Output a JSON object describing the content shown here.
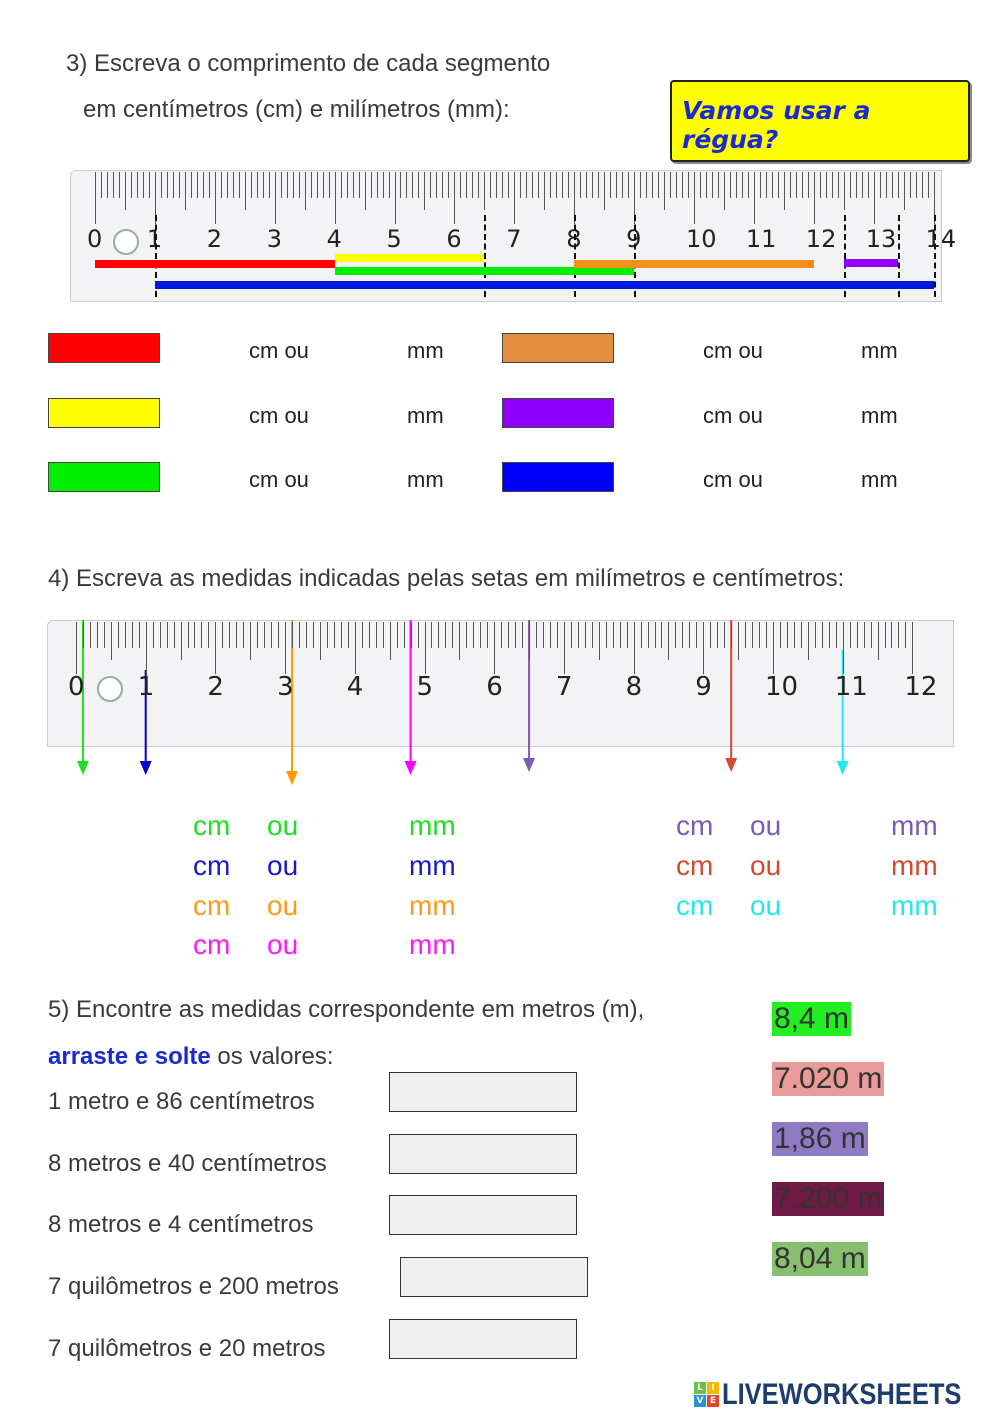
{
  "q3": {
    "line1": "3) Escreva o comprimento de cada segmento",
    "line2": "em centímetros (cm) e milímetros (mm):"
  },
  "banner": {
    "text": "Vamos usar a régua?"
  },
  "ruler1": {
    "max_cm": 14,
    "labels": [
      "0",
      "1",
      "2",
      "3",
      "4",
      "5",
      "6",
      "7",
      "8",
      "9",
      "10",
      "11",
      "12",
      "13",
      "14"
    ],
    "segments": [
      {
        "color": "#ff0000",
        "start_cm": 0,
        "end_cm": 4
      },
      {
        "color": "#ffff00",
        "start_cm": 4,
        "end_cm": 6.5
      },
      {
        "color": "#00ee00",
        "start_cm": 4,
        "end_cm": 9
      },
      {
        "color": "#f39019",
        "start_cm": 8,
        "end_cm": 12
      },
      {
        "color": "#8f00ff",
        "start_cm": 12.5,
        "end_cm": 13.4
      },
      {
        "color": "#0019e0",
        "start_cm": 1,
        "end_cm": 14
      }
    ],
    "dashed_marks_cm": [
      1,
      6.5,
      8,
      9,
      12.5,
      13.4,
      14
    ]
  },
  "q3_answers": [
    {
      "color": "#ff0000",
      "cm": "cm ou",
      "mm": "mm"
    },
    {
      "color": "#ffff00",
      "cm": "cm ou",
      "mm": "mm"
    },
    {
      "color": "#00ee00",
      "cm": "cm ou",
      "mm": "mm"
    },
    {
      "color": "#e28e3c",
      "cm": "cm ou",
      "mm": "mm"
    },
    {
      "color": "#8f00ff",
      "cm": "cm ou",
      "mm": "mm"
    },
    {
      "color": "#0000ff",
      "cm": "cm ou",
      "mm": "mm"
    }
  ],
  "q4": {
    "title": "4) Escreva as medidas indicadas pelas setas em milímetros e centímetros:"
  },
  "ruler2": {
    "max_cm": 12,
    "labels": [
      "0",
      "1",
      "2",
      "3",
      "4",
      "5",
      "6",
      "7",
      "8",
      "9",
      "10",
      "11",
      "12"
    ],
    "arrows": [
      {
        "color": "#22dd22",
        "cm": 0.1
      },
      {
        "color": "#0000cc",
        "cm": 1
      },
      {
        "color": "#ff9a00",
        "cm": 3.1
      },
      {
        "color": "#ff00ff",
        "cm": 4.8
      },
      {
        "color": "#7a5bb5",
        "cm": 6.5
      },
      {
        "color": "#d24a30",
        "cm": 9.4
      },
      {
        "color": "#22e6f0",
        "cm": 11
      }
    ]
  },
  "q4_answers": [
    {
      "color": "#22dd22",
      "cm": "cm",
      "ou": "ou",
      "mm": "mm"
    },
    {
      "color": "#1a1acc",
      "cm": "cm",
      "ou": "ou",
      "mm": "mm"
    },
    {
      "color": "#ff9a1a",
      "cm": "cm",
      "ou": "ou",
      "mm": "mm"
    },
    {
      "color": "#ff1aff",
      "cm": "cm",
      "ou": "ou",
      "mm": "mm"
    },
    {
      "color": "#7a5bb5",
      "cm": "cm",
      "ou": "ou",
      "mm": "mm"
    },
    {
      "color": "#d24a30",
      "cm": "cm",
      "ou": "ou",
      "mm": "mm"
    },
    {
      "color": "#22e6f0",
      "cm": "cm",
      "ou": "ou",
      "mm": "mm"
    }
  ],
  "q5": {
    "line1": "5) Encontre as medidas correspondente em metros (m),",
    "emph": "arraste e solte",
    "rest": " os valores:",
    "items": [
      "1 metro e 86 centímetros",
      "8 metros e 40 centímetros",
      "8 metros e 4 centímetros",
      "7 quilômetros e  200 metros",
      "7 quilômetros e 20 metros"
    ],
    "tags": [
      {
        "text": "8,4 m",
        "color": "#22ee22"
      },
      {
        "text": "7.020 m",
        "color": "#e89b98"
      },
      {
        "text": "1,86 m",
        "color": "#8e7bc4"
      },
      {
        "text": "7.200 m",
        "color": "#6e1a45"
      },
      {
        "text": "8,04 m",
        "color": "#86c06e"
      }
    ]
  },
  "footer": {
    "logo": "LIVEWORKSHEETS"
  }
}
